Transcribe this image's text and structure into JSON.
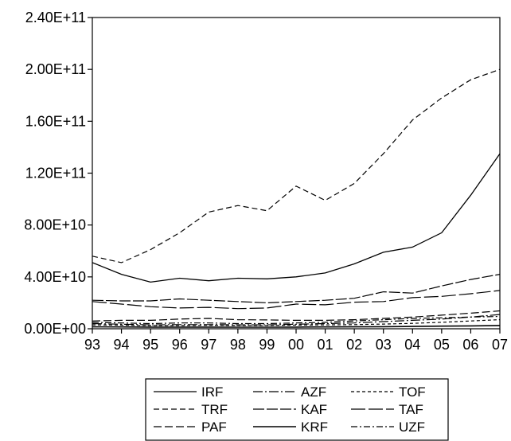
{
  "chart_data": {
    "type": "line",
    "title": "",
    "xlabel": "",
    "ylabel": "",
    "x": [
      "93",
      "94",
      "95",
      "96",
      "97",
      "98",
      "99",
      "00",
      "01",
      "02",
      "03",
      "04",
      "05",
      "06",
      "07"
    ],
    "ylim": [
      0,
      240000000000
    ],
    "y_ticks": [
      "0.00E+00",
      "4.00E+10",
      "8.00E+10",
      "1.20E+11",
      "1.60E+11",
      "2.00E+11",
      "2.40E+11"
    ],
    "grid": false,
    "legend_position": "bottom",
    "series": [
      {
        "name": "IRF",
        "style": "solid",
        "values": [
          51000000000.0,
          42000000000.0,
          36000000000.0,
          39000000000.0,
          37000000000.0,
          39000000000.0,
          38500000000.0,
          40000000000.0,
          43000000000.0,
          50000000000.0,
          59000000000.0,
          63000000000.0,
          74000000000.0,
          103000000000.0,
          135000000000.0
        ]
      },
      {
        "name": "AZF",
        "style": "dashdot",
        "values": [
          4000000000.0,
          3500000000.0,
          3000000000.0,
          3200000000.0,
          3200000000.0,
          3000000000.0,
          3000000000.0,
          3500000000.0,
          4000000000.0,
          4500000000.0,
          5500000000.0,
          6500000000.0,
          7500000000.0,
          9000000000.0,
          11000000000.0
        ]
      },
      {
        "name": "TOF",
        "style": "shortdash",
        "values": [
          3000000000.0,
          2800000000.0,
          2500000000.0,
          2500000000.0,
          2700000000.0,
          2600000000.0,
          2600000000.0,
          2800000000.0,
          3000000000.0,
          3200000000.0,
          3600000000.0,
          4200000000.0,
          5000000000.0,
          6000000000.0,
          7000000000.0
        ]
      },
      {
        "name": "TRF",
        "style": "dashed",
        "values": [
          56000000000.0,
          51000000000.0,
          61000000000.0,
          74000000000.0,
          90000000000.0,
          95000000000.0,
          91000000000.0,
          110000000000.0,
          99000000000.0,
          112000000000.0,
          135000000000.0,
          161000000000.0,
          178000000000.0,
          192000000000.0,
          200000000000.0
        ]
      },
      {
        "name": "KAF",
        "style": "longdash",
        "values": [
          22000000000.0,
          21500000000.0,
          21500000000.0,
          23000000000.0,
          22000000000.0,
          21000000000.0,
          20000000000.0,
          21000000000.0,
          22000000000.0,
          23500000000.0,
          28500000000.0,
          27500000000.0,
          33000000000.0,
          38000000000.0,
          42000000000.0
        ]
      },
      {
        "name": "TAF",
        "style": "longdash2",
        "values": [
          21000000000.0,
          19000000000.0,
          17000000000.0,
          16000000000.0,
          16500000000.0,
          15500000000.0,
          16000000000.0,
          19000000000.0,
          18500000000.0,
          20500000000.0,
          21000000000.0,
          24000000000.0,
          25000000000.0,
          27000000000.0,
          29500000000.0
        ]
      },
      {
        "name": "PAF",
        "style": "longdash3",
        "values": [
          6000000000.0,
          6500000000.0,
          6500000000.0,
          7500000000.0,
          8000000000.0,
          7000000000.0,
          6800000000.0,
          6500000000.0,
          6500000000.0,
          7000000000.0,
          8000000000.0,
          9000000000.0,
          10500000000.0,
          12000000000.0,
          13800000000.0
        ]
      },
      {
        "name": "KRF",
        "style": "solid2",
        "values": [
          1500000000.0,
          1400000000.0,
          1300000000.0,
          1300000000.0,
          1300000000.0,
          1200000000.0,
          1200000000.0,
          1300000000.0,
          1400000000.0,
          1500000000.0,
          1600000000.0,
          1800000000.0,
          2000000000.0,
          2200000000.0,
          2500000000.0
        ]
      },
      {
        "name": "UZF",
        "style": "dashdot2",
        "values": [
          5000000000.0,
          4500000000.0,
          4000000000.0,
          4500000000.0,
          4500000000.0,
          4000000000.0,
          4000000000.0,
          4500000000.0,
          5000000000.0,
          6000000000.0,
          7000000000.0,
          8000000000.0,
          8500000000.0,
          9000000000.0,
          9500000000.0
        ]
      }
    ]
  }
}
